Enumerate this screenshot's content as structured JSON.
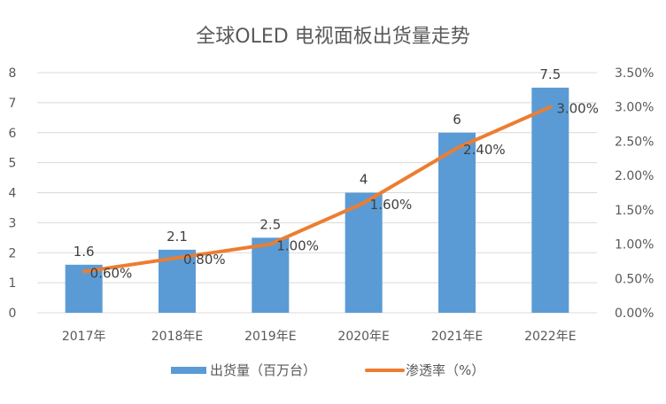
{
  "chart_data": {
    "type": "bar+line",
    "title": "全球OLED 电视面板出货量走势",
    "categories": [
      "2017年",
      "2018年E",
      "2019年E",
      "2020年E",
      "2021年E",
      "2022年E"
    ],
    "series": [
      {
        "name": "出货量（百万台）",
        "type": "bar",
        "axis": "left",
        "color": "#5b9bd5",
        "values": [
          1.6,
          2.1,
          2.5,
          4,
          6,
          7.5
        ],
        "labels": [
          "1.6",
          "2.1",
          "2.5",
          "4",
          "6",
          "7.5"
        ]
      },
      {
        "name": "渗透率（%）",
        "type": "line",
        "axis": "right",
        "color": "#ed7d31",
        "values": [
          0.6,
          0.8,
          1.0,
          1.6,
          2.4,
          3.0
        ],
        "labels": [
          "0.60%",
          "0.80%",
          "1.00%",
          "1.60%",
          "2.40%",
          "3.00%"
        ]
      }
    ],
    "left_axis": {
      "ylim": [
        0,
        8
      ],
      "ticks": [
        "0",
        "1",
        "2",
        "3",
        "4",
        "5",
        "6",
        "7",
        "8"
      ]
    },
    "right_axis": {
      "ylim": [
        0,
        3.5
      ],
      "ticks": [
        "0.00%",
        "0.50%",
        "1.00%",
        "1.50%",
        "2.00%",
        "2.50%",
        "3.00%",
        "3.50%"
      ]
    },
    "grid": true,
    "legend_position": "bottom"
  }
}
